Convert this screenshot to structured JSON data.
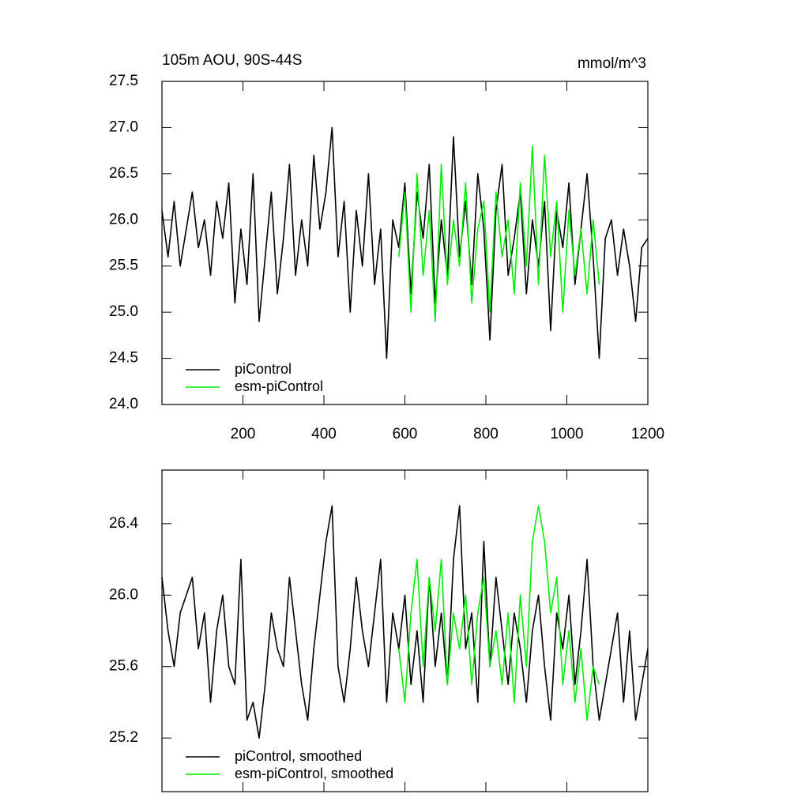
{
  "chart_data": [
    {
      "type": "line",
      "title": "105m AOU, 90S-44S",
      "units": "mmol/m^3",
      "x": [
        0,
        15,
        30,
        45,
        60,
        75,
        90,
        105,
        120,
        135,
        150,
        165,
        180,
        195,
        210,
        225,
        240,
        255,
        270,
        285,
        300,
        315,
        330,
        345,
        360,
        375,
        390,
        405,
        420,
        435,
        450,
        465,
        480,
        495,
        510,
        525,
        540,
        555,
        570,
        585,
        600,
        615,
        630,
        645,
        660,
        675,
        690,
        705,
        720,
        735,
        750,
        765,
        780,
        795,
        810,
        825,
        840,
        855,
        870,
        885,
        900,
        915,
        930,
        945,
        960,
        975,
        990,
        1005,
        1020,
        1035,
        1050,
        1065,
        1080,
        1095,
        1110,
        1125,
        1140,
        1155,
        1170,
        1185,
        1200
      ],
      "series": [
        {
          "name": "piControl",
          "color": "#000000",
          "values": [
            26.1,
            25.6,
            26.2,
            25.5,
            25.9,
            26.3,
            25.7,
            26.0,
            25.4,
            26.2,
            25.8,
            26.4,
            25.1,
            25.9,
            25.3,
            26.5,
            24.9,
            25.6,
            26.3,
            25.2,
            25.8,
            26.6,
            25.4,
            26.0,
            25.5,
            26.7,
            25.9,
            26.3,
            27.0,
            25.6,
            26.2,
            25.0,
            26.1,
            25.5,
            26.5,
            25.3,
            25.9,
            24.5,
            26.0,
            25.7,
            26.4,
            25.2,
            26.3,
            25.8,
            26.6,
            25.1,
            26.0,
            25.4,
            26.9,
            25.6,
            26.2,
            25.3,
            26.5,
            25.9,
            24.7,
            26.1,
            26.6,
            25.4,
            25.8,
            26.3,
            25.2,
            26.0,
            25.5,
            26.2,
            24.8,
            26.1,
            25.7,
            26.4,
            25.3,
            25.9,
            26.5,
            25.6,
            24.5,
            25.8,
            26.0,
            25.4,
            25.9,
            25.5,
            24.9,
            25.7,
            25.8
          ]
        },
        {
          "name": "esm-piControl",
          "color": "#00ee00",
          "values": [
            null,
            null,
            null,
            null,
            null,
            null,
            null,
            null,
            null,
            null,
            null,
            null,
            null,
            null,
            null,
            null,
            null,
            null,
            null,
            null,
            null,
            null,
            null,
            null,
            null,
            null,
            null,
            null,
            null,
            null,
            null,
            null,
            null,
            null,
            null,
            null,
            null,
            null,
            null,
            25.6,
            26.3,
            25.0,
            26.5,
            25.4,
            26.1,
            24.9,
            26.6,
            25.3,
            26.0,
            25.5,
            26.4,
            25.1,
            25.9,
            26.2,
            25.0,
            26.3,
            25.6,
            26.0,
            25.2,
            26.4,
            25.5,
            26.8,
            25.3,
            26.7,
            25.6,
            26.2,
            25.0,
            26.1,
            25.4,
            25.9,
            25.2,
            26.0,
            25.3,
            null,
            null,
            null,
            null,
            null,
            null,
            null,
            null
          ]
        }
      ],
      "xlim": [
        0,
        1200
      ],
      "xticks": [
        200,
        400,
        600,
        800,
        1000,
        1200
      ],
      "ylim": [
        24.0,
        27.5
      ],
      "yticks": [
        {
          "value": 24,
          "label": "24.0"
        },
        24.5,
        {
          "value": 25,
          "label": "25.0"
        },
        25.5,
        {
          "value": 26,
          "label": "26.0"
        },
        26.5,
        {
          "value": 27,
          "label": "27.0"
        },
        27.5
      ],
      "legend": "lower-left"
    },
    {
      "type": "line",
      "x": [
        0,
        15,
        30,
        45,
        60,
        75,
        90,
        105,
        120,
        135,
        150,
        165,
        180,
        195,
        210,
        225,
        240,
        255,
        270,
        285,
        300,
        315,
        330,
        345,
        360,
        375,
        390,
        405,
        420,
        435,
        450,
        465,
        480,
        495,
        510,
        525,
        540,
        555,
        570,
        585,
        600,
        615,
        630,
        645,
        660,
        675,
        690,
        705,
        720,
        735,
        750,
        765,
        780,
        795,
        810,
        825,
        840,
        855,
        870,
        885,
        900,
        915,
        930,
        945,
        960,
        975,
        990,
        1005,
        1020,
        1035,
        1050,
        1065,
        1080,
        1095,
        1110,
        1125,
        1140,
        1155,
        1170,
        1185,
        1200
      ],
      "series": [
        {
          "name": "piControl, smoothed",
          "color": "#000000",
          "values": [
            26.1,
            25.8,
            25.6,
            25.9,
            26.0,
            26.1,
            25.7,
            25.9,
            25.4,
            25.8,
            26.0,
            25.6,
            25.5,
            26.2,
            25.3,
            25.4,
            25.2,
            25.5,
            25.9,
            25.7,
            25.6,
            26.1,
            25.8,
            25.5,
            25.3,
            25.7,
            26.0,
            26.3,
            26.5,
            25.6,
            25.4,
            25.7,
            26.1,
            25.8,
            25.6,
            25.9,
            26.2,
            25.4,
            25.9,
            25.7,
            26.0,
            25.5,
            25.8,
            25.4,
            26.1,
            25.6,
            25.9,
            25.5,
            26.2,
            26.5,
            25.7,
            25.9,
            25.4,
            26.3,
            25.6,
            26.1,
            25.8,
            25.5,
            25.9,
            25.7,
            25.4,
            25.8,
            26.0,
            25.6,
            25.3,
            25.9,
            25.7,
            26.0,
            25.5,
            25.8,
            26.2,
            25.6,
            25.3,
            25.5,
            25.7,
            25.9,
            25.4,
            25.8,
            25.3,
            25.5,
            25.7
          ]
        },
        {
          "name": "esm-piControl, smoothed",
          "color": "#00ee00",
          "values": [
            null,
            null,
            null,
            null,
            null,
            null,
            null,
            null,
            null,
            null,
            null,
            null,
            null,
            null,
            null,
            null,
            null,
            null,
            null,
            null,
            null,
            null,
            null,
            null,
            null,
            null,
            null,
            null,
            null,
            null,
            null,
            null,
            null,
            null,
            null,
            null,
            null,
            null,
            null,
            25.7,
            25.4,
            25.9,
            26.2,
            25.6,
            26.1,
            25.8,
            26.2,
            25.5,
            25.9,
            25.7,
            26.0,
            25.5,
            25.9,
            26.1,
            25.6,
            25.8,
            25.5,
            25.9,
            25.4,
            26.0,
            25.6,
            26.3,
            26.5,
            26.3,
            25.9,
            26.1,
            25.5,
            25.8,
            25.4,
            25.7,
            25.3,
            25.6,
            25.5,
            null,
            null,
            null,
            null,
            null,
            null,
            null,
            null
          ]
        }
      ],
      "xlim": [
        0,
        1200
      ],
      "xticks": [
        200,
        400,
        600,
        800,
        1000,
        1200
      ],
      "ylim": [
        24.9,
        26.7
      ],
      "yticks": [
        25.2,
        25.6,
        {
          "value": 26,
          "label": "26.0"
        },
        26.4
      ],
      "legend": "lower-left"
    }
  ]
}
